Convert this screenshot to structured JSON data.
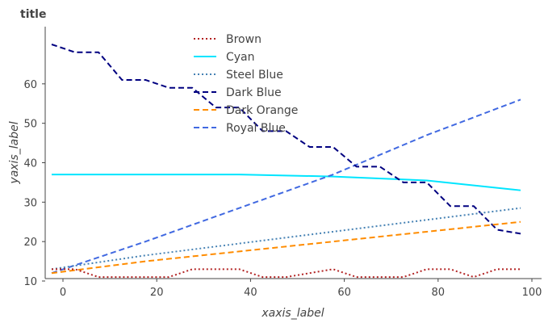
{
  "chart_data": {
    "type": "line",
    "title": "title",
    "xlabel": "xaxis_label",
    "ylabel": "yaxis_label",
    "xlim": [
      0,
      100
    ],
    "ylim": [
      10,
      70
    ],
    "xticks": [
      "0",
      "20",
      "40",
      "60",
      "80",
      "100"
    ],
    "yticks": [
      "10",
      "20",
      "30",
      "40",
      "50",
      "60"
    ],
    "legend_position": "top-center",
    "series": [
      {
        "name": "Brown",
        "color": "#b22222",
        "dash": "dotted",
        "x": [
          0,
          5,
          10,
          15,
          20,
          25,
          30,
          35,
          40,
          45,
          50,
          55,
          60,
          65,
          70,
          75,
          80,
          85,
          90,
          95,
          100
        ],
        "y": [
          13,
          13,
          11,
          11,
          11,
          11,
          13,
          13,
          13,
          11,
          11,
          12,
          13,
          11,
          11,
          11,
          13,
          13,
          11,
          13,
          13
        ]
      },
      {
        "name": "Cyan",
        "color": "#00e5ff",
        "dash": "solid",
        "x": [
          0,
          20,
          40,
          60,
          80,
          100
        ],
        "y": [
          37,
          37,
          37,
          36.5,
          35.5,
          33
        ]
      },
      {
        "name": "Steel Blue",
        "color": "#4682b4",
        "dash": "dotted",
        "x": [
          0,
          20,
          40,
          60,
          80,
          100
        ],
        "y": [
          13,
          16.5,
          19.5,
          22.5,
          25.5,
          28.5
        ]
      },
      {
        "name": "Dark Blue",
        "color": "#000080",
        "dash": "dashed",
        "x": [
          0,
          5,
          10,
          15,
          20,
          25,
          30,
          35,
          40,
          45,
          50,
          55,
          60,
          65,
          70,
          75,
          80,
          85,
          90,
          95,
          100
        ],
        "y": [
          70,
          68,
          68,
          61,
          61,
          59,
          59,
          54,
          54,
          48,
          48,
          44,
          44,
          39,
          39,
          35,
          35,
          29,
          29,
          23,
          22
        ]
      },
      {
        "name": "Dark Orange",
        "color": "#ff8c00",
        "dash": "dashed",
        "x": [
          0,
          20,
          40,
          60,
          80,
          100
        ],
        "y": [
          12,
          15,
          17.5,
          20,
          22.5,
          25
        ]
      },
      {
        "name": "Royal Blue",
        "color": "#4169e1",
        "dash": "dashed",
        "x": [
          0,
          20,
          40,
          60,
          80,
          100
        ],
        "y": [
          12,
          20,
          28.5,
          37,
          47,
          56
        ]
      }
    ]
  }
}
